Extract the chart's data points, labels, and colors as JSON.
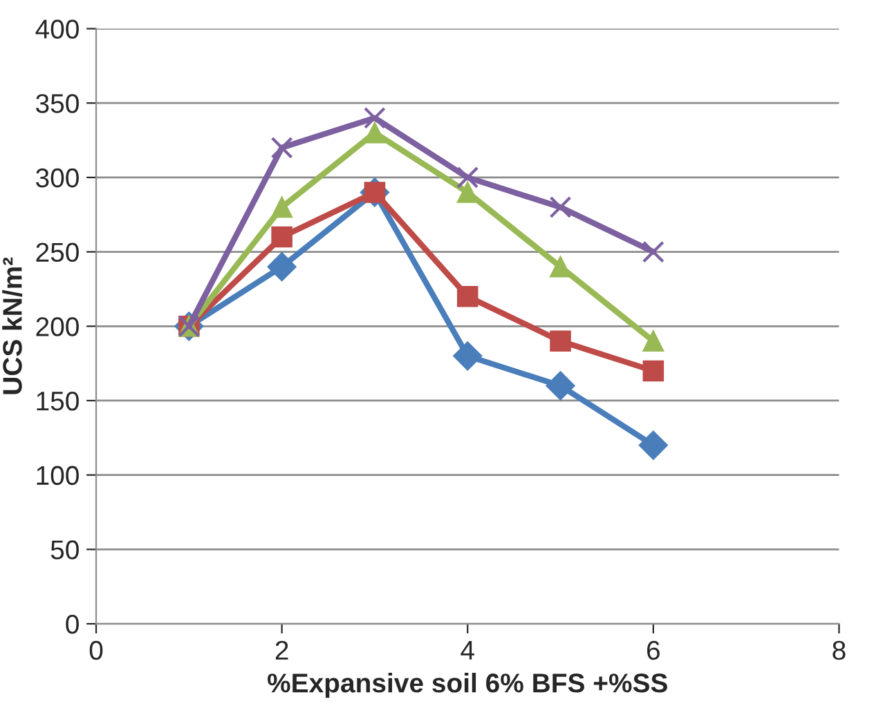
{
  "chart_data": {
    "type": "line",
    "xlabel": "%Expansive soil 6% BFS +%SS",
    "ylabel": "UCS kN/m²",
    "xlim": [
      0,
      8
    ],
    "xticks": [
      0,
      2,
      4,
      6,
      8
    ],
    "ylim": [
      0,
      400
    ],
    "yticks": [
      0,
      50,
      100,
      150,
      200,
      250,
      300,
      350,
      400
    ],
    "grid": "y",
    "legend": false,
    "series": [
      {
        "x": [
          1,
          2,
          3,
          4,
          5,
          6
        ],
        "values": [
          200,
          240,
          290,
          180,
          160,
          120
        ],
        "color": "#4a7ebb",
        "marker": "diamond"
      },
      {
        "x": [
          1,
          2,
          3,
          4,
          5,
          6
        ],
        "values": [
          200,
          260,
          290,
          220,
          190,
          170
        ],
        "color": "#be4b48",
        "marker": "square"
      },
      {
        "x": [
          1,
          2,
          3,
          4,
          5,
          6
        ],
        "values": [
          200,
          280,
          330,
          290,
          240,
          190
        ],
        "color": "#98b954",
        "marker": "triangle"
      },
      {
        "x": [
          1,
          2,
          3,
          4,
          5,
          6
        ],
        "values": [
          200,
          320,
          340,
          300,
          280,
          250
        ],
        "color": "#7d60a0",
        "marker": "cross"
      }
    ]
  }
}
